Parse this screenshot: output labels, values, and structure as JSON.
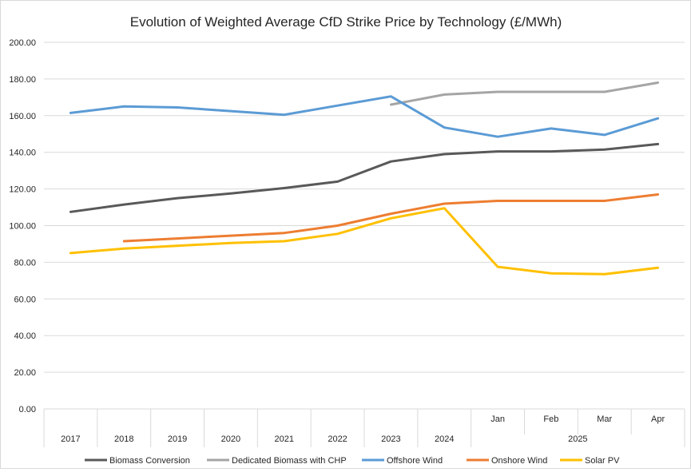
{
  "chart_data": {
    "type": "line",
    "title": "Evolution of Weighted Average CfD Strike Price by Technology (£/MWh)",
    "xlabel": "",
    "ylabel": "",
    "ylim": [
      0,
      200
    ],
    "yticks": [
      "0.00",
      "20.00",
      "40.00",
      "60.00",
      "80.00",
      "100.00",
      "120.00",
      "140.00",
      "160.00",
      "180.00",
      "200.00"
    ],
    "categories": [
      "2017",
      "2018",
      "2019",
      "2020",
      "2021",
      "2022",
      "2023",
      "2024",
      "Jan",
      "Feb",
      "Mar",
      "Apr"
    ],
    "category_group": {
      "label": "2025",
      "start_index": 8,
      "end_index": 11
    },
    "grid": true,
    "legend_position": "bottom",
    "series": [
      {
        "name": "Biomass Conversion",
        "color": "#595959",
        "values": [
          107.5,
          111.5,
          115,
          117.5,
          120.5,
          124,
          135,
          139,
          140.5,
          140.5,
          141.5,
          144.5
        ]
      },
      {
        "name": "Dedicated Biomass with CHP",
        "color": "#a5a5a5",
        "values": [
          null,
          null,
          null,
          null,
          null,
          null,
          166,
          171.5,
          173,
          173,
          173,
          178
        ]
      },
      {
        "name": "Offshore Wind",
        "color": "#5b9bd5",
        "values": [
          161.5,
          165,
          164.5,
          162.5,
          160.5,
          165.5,
          170.5,
          153.5,
          148.5,
          153,
          149.5,
          158.5
        ]
      },
      {
        "name": "Onshore Wind",
        "color": "#ed7d31",
        "values": [
          null,
          91.5,
          93,
          94.5,
          96,
          100,
          106.5,
          112,
          113.5,
          113.5,
          113.5,
          117
        ]
      },
      {
        "name": "Solar PV",
        "color": "#ffc000",
        "values": [
          85,
          87.5,
          89,
          90.5,
          91.5,
          95.5,
          104,
          109.5,
          77.5,
          74,
          73.5,
          77
        ]
      }
    ]
  }
}
